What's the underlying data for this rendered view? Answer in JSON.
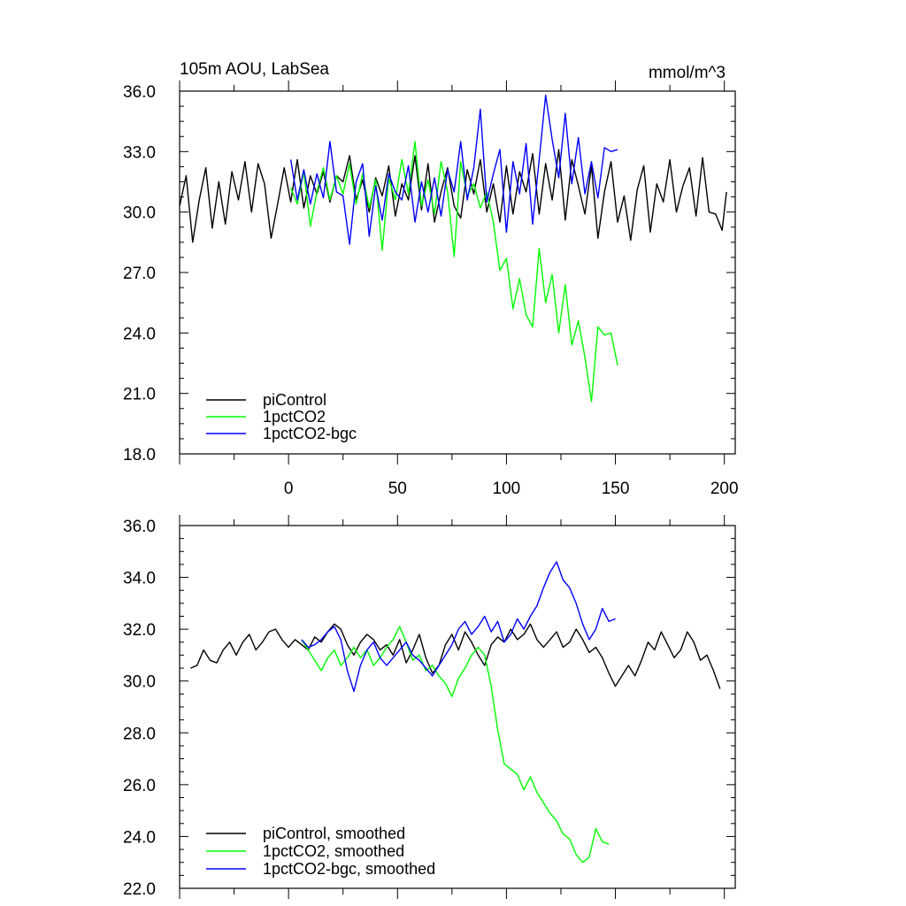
{
  "chart_data": [
    {
      "type": "line",
      "title": "105m AOU, LabSea",
      "units": "mmol/m^3",
      "xlim": [
        -50,
        205
      ],
      "ylim": [
        18.0,
        36.0
      ],
      "xticks": [
        0,
        50,
        100,
        150,
        200
      ],
      "yticks": [
        18.0,
        21.0,
        24.0,
        27.0,
        30.0,
        33.0,
        36.0
      ],
      "yticklabels": [
        "18.0",
        "21.0",
        "24.0",
        "27.0",
        "30.0",
        "33.0",
        "36.0"
      ],
      "legend": [
        "piControl",
        "1pctCO2",
        "1pctCO2-bgc"
      ],
      "series": [
        {
          "name": "piControl",
          "color": "#000000",
          "x": [
            -50,
            -47,
            -44,
            -41,
            -38,
            -35,
            -32,
            -29,
            -26,
            -23,
            -20,
            -17,
            -14,
            -11,
            -8,
            -5,
            -2,
            1,
            4,
            7,
            10,
            13,
            16,
            19,
            22,
            25,
            28,
            31,
            34,
            37,
            40,
            43,
            46,
            49,
            52,
            55,
            58,
            61,
            64,
            67,
            70,
            73,
            76,
            79,
            82,
            85,
            88,
            91,
            94,
            97,
            100,
            103,
            106,
            109,
            112,
            115,
            118,
            121,
            124,
            127,
            130,
            133,
            136,
            139,
            142,
            145,
            148,
            151,
            154,
            157,
            160,
            163,
            166,
            169,
            172,
            175,
            178,
            181,
            184,
            187,
            190,
            193,
            196,
            199,
            201
          ],
          "values": [
            30.3,
            31.8,
            28.5,
            30.6,
            32.2,
            29.2,
            31.5,
            29.4,
            32.0,
            30.6,
            32.5,
            30.0,
            32.4,
            31.4,
            28.7,
            30.4,
            32.2,
            30.5,
            32.6,
            30.2,
            31.8,
            30.9,
            32.0,
            30.5,
            31.8,
            31.5,
            32.8,
            30.6,
            31.6,
            30.0,
            31.7,
            30.8,
            32.3,
            29.8,
            31.4,
            30.6,
            32.8,
            30.1,
            32.4,
            29.5,
            31.0,
            32.2,
            30.3,
            29.7,
            32.1,
            30.9,
            32.6,
            30.0,
            31.4,
            29.5,
            32.3,
            29.9,
            32.0,
            31.0,
            32.9,
            29.9,
            32.4,
            30.6,
            33.1,
            29.6,
            32.6,
            31.3,
            29.9,
            32.3,
            28.7,
            31.0,
            32.5,
            29.5,
            30.8,
            28.6,
            31.1,
            32.3,
            29.0,
            31.4,
            30.5,
            32.6,
            30.0,
            31.3,
            32.2,
            29.8,
            32.7,
            30.0,
            29.9,
            29.1,
            31.0
          ]
        },
        {
          "name": "1pctCO2",
          "color": "#00ff00",
          "x": [
            1,
            4,
            7,
            10,
            13,
            16,
            19,
            22,
            25,
            28,
            31,
            34,
            37,
            40,
            43,
            46,
            49,
            52,
            55,
            58,
            61,
            64,
            67,
            70,
            73,
            76,
            79,
            82,
            85,
            88,
            91,
            94,
            97,
            100,
            103,
            106,
            109,
            112,
            115,
            118,
            121,
            124,
            127,
            130,
            133,
            136,
            139,
            142,
            145,
            148,
            151
          ],
          "values": [
            31.2,
            30.4,
            32.0,
            29.3,
            31.0,
            32.2,
            30.6,
            31.8,
            30.9,
            32.4,
            30.4,
            31.9,
            30.2,
            31.6,
            28.1,
            31.7,
            30.6,
            32.6,
            30.9,
            33.5,
            30.3,
            31.6,
            29.9,
            32.5,
            31.0,
            27.8,
            32.5,
            30.8,
            31.4,
            30.2,
            31.0,
            29.5,
            27.1,
            27.7,
            25.2,
            26.7,
            24.9,
            24.3,
            28.2,
            25.5,
            26.9,
            24.0,
            26.4,
            23.4,
            24.6,
            22.8,
            20.6,
            24.3,
            23.9,
            24.0,
            22.4
          ]
        },
        {
          "name": "1pctCO2-bgc",
          "color": "#0000ff",
          "x": [
            1,
            4,
            7,
            10,
            13,
            16,
            19,
            22,
            25,
            28,
            31,
            34,
            37,
            40,
            43,
            46,
            49,
            52,
            55,
            58,
            61,
            64,
            67,
            70,
            73,
            76,
            79,
            82,
            85,
            88,
            91,
            94,
            97,
            100,
            103,
            106,
            109,
            112,
            115,
            118,
            121,
            124,
            127,
            130,
            133,
            136,
            139,
            142,
            145,
            148,
            151
          ],
          "values": [
            32.6,
            30.6,
            32.1,
            30.4,
            31.9,
            30.7,
            33.5,
            31.0,
            30.8,
            28.4,
            31.5,
            32.4,
            28.8,
            31.3,
            29.6,
            31.9,
            31.0,
            30.6,
            32.3,
            29.5,
            31.5,
            30.0,
            31.7,
            29.8,
            32.1,
            31.0,
            33.5,
            30.6,
            32.2,
            35.1,
            30.5,
            31.9,
            33.1,
            29.0,
            32.5,
            30.9,
            33.4,
            29.4,
            32.6,
            35.8,
            33.6,
            31.7,
            34.9,
            31.4,
            33.7,
            30.9,
            32.5,
            30.7,
            33.2,
            33.0,
            33.1
          ]
        }
      ]
    },
    {
      "type": "line",
      "xlim": [
        -50,
        205
      ],
      "ylim": [
        22.0,
        36.0
      ],
      "xticks": [
        0,
        50,
        100,
        150,
        200
      ],
      "yticks": [
        22.0,
        24.0,
        26.0,
        28.0,
        30.0,
        32.0,
        34.0,
        36.0
      ],
      "yticklabels": [
        "22.0",
        "24.0",
        "26.0",
        "28.0",
        "30.0",
        "32.0",
        "34.0",
        "36.0"
      ],
      "legend": [
        "piControl, smoothed",
        "1pctCO2, smoothed",
        "1pctCO2-bgc, smoothed"
      ],
      "series": [
        {
          "name": "piControl, smoothed",
          "color": "#000000",
          "x": [
            -45,
            -42,
            -39,
            -36,
            -33,
            -30,
            -27,
            -24,
            -21,
            -18,
            -15,
            -12,
            -9,
            -6,
            -3,
            0,
            3,
            6,
            9,
            12,
            15,
            18,
            21,
            24,
            27,
            30,
            33,
            36,
            39,
            42,
            45,
            48,
            51,
            54,
            57,
            60,
            63,
            66,
            69,
            72,
            75,
            78,
            81,
            84,
            87,
            90,
            93,
            96,
            99,
            102,
            105,
            108,
            111,
            114,
            117,
            120,
            123,
            126,
            129,
            132,
            135,
            138,
            141,
            144,
            147,
            150,
            153,
            156,
            159,
            162,
            165,
            168,
            171,
            174,
            177,
            180,
            183,
            186,
            189,
            192,
            195,
            198
          ],
          "values": [
            30.5,
            30.6,
            31.2,
            30.8,
            30.7,
            31.2,
            31.5,
            31.0,
            31.5,
            31.8,
            31.2,
            31.5,
            31.9,
            32.0,
            31.6,
            31.3,
            31.6,
            31.4,
            31.2,
            31.7,
            31.5,
            31.9,
            32.2,
            32.0,
            31.4,
            31.0,
            31.5,
            31.8,
            31.6,
            31.2,
            31.4,
            31.0,
            31.6,
            30.7,
            31.2,
            31.8,
            30.9,
            30.3,
            30.6,
            31.4,
            31.8,
            31.2,
            31.9,
            31.5,
            31.0,
            30.6,
            31.4,
            31.7,
            31.5,
            32.0,
            31.6,
            31.8,
            32.2,
            31.6,
            31.3,
            31.6,
            31.9,
            31.3,
            31.5,
            32.0,
            31.6,
            31.1,
            31.3,
            30.9,
            30.3,
            29.8,
            30.2,
            30.6,
            30.2,
            30.8,
            31.5,
            31.2,
            31.9,
            31.4,
            30.9,
            31.2,
            31.9,
            31.5,
            30.8,
            31.0,
            30.4,
            29.7
          ]
        },
        {
          "name": "1pctCO2, smoothed",
          "color": "#00ff00",
          "x": [
            6,
            9,
            12,
            15,
            18,
            21,
            24,
            27,
            30,
            33,
            36,
            39,
            42,
            45,
            48,
            51,
            54,
            57,
            60,
            63,
            66,
            69,
            72,
            75,
            78,
            81,
            84,
            87,
            90,
            93,
            96,
            99,
            102,
            105,
            108,
            111,
            114,
            117,
            120,
            123,
            126,
            129,
            132,
            135,
            138,
            141,
            144,
            147
          ],
          "values": [
            31.6,
            31.2,
            30.8,
            30.4,
            30.9,
            31.2,
            30.6,
            30.9,
            31.3,
            30.9,
            31.2,
            30.6,
            30.9,
            31.3,
            31.6,
            32.1,
            31.5,
            30.8,
            31.0,
            30.4,
            30.6,
            30.2,
            29.9,
            29.4,
            30.1,
            30.5,
            31.0,
            31.3,
            31.0,
            29.8,
            28.1,
            26.8,
            26.6,
            26.4,
            25.8,
            26.3,
            25.7,
            25.3,
            24.9,
            24.6,
            24.1,
            23.9,
            23.3,
            23.0,
            23.2,
            24.3,
            23.8,
            23.7
          ]
        },
        {
          "name": "1pctCO2-bgc, smoothed",
          "color": "#0000ff",
          "x": [
            6,
            9,
            12,
            15,
            18,
            21,
            24,
            27,
            30,
            33,
            36,
            39,
            42,
            45,
            48,
            51,
            54,
            57,
            60,
            63,
            66,
            69,
            72,
            75,
            78,
            81,
            84,
            87,
            90,
            93,
            96,
            99,
            102,
            105,
            108,
            111,
            114,
            117,
            120,
            123,
            126,
            129,
            132,
            135,
            138,
            141,
            144,
            147,
            150
          ],
          "values": [
            31.6,
            31.3,
            31.4,
            31.6,
            31.9,
            32.1,
            31.6,
            30.4,
            29.6,
            30.6,
            31.2,
            31.5,
            30.9,
            30.6,
            30.9,
            31.2,
            31.5,
            31.0,
            30.8,
            30.5,
            30.2,
            30.6,
            31.0,
            31.4,
            32.0,
            32.3,
            31.8,
            32.1,
            32.5,
            31.9,
            32.3,
            31.5,
            31.8,
            32.4,
            32.0,
            32.5,
            32.9,
            33.6,
            34.2,
            34.6,
            33.9,
            33.6,
            33.0,
            32.2,
            31.6,
            32.0,
            32.8,
            32.3,
            32.4
          ]
        }
      ]
    }
  ]
}
